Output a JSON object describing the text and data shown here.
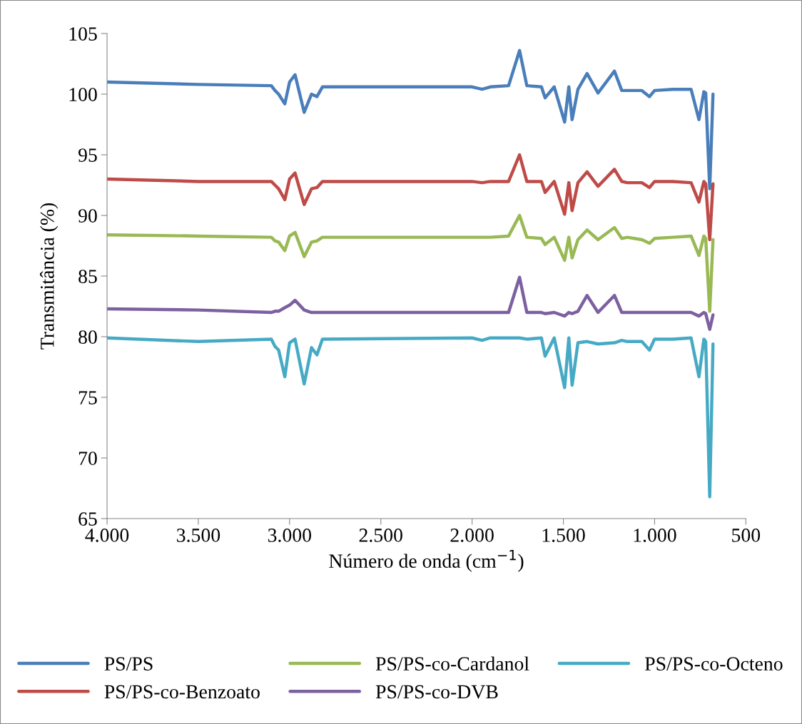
{
  "chart_data": {
    "type": "line",
    "xlabel": "Número de onda (cm$^{−1}$)",
    "ylabel": "Transmitância (%)",
    "x": [
      4000,
      3500,
      3100,
      3080,
      3060,
      3026,
      3000,
      2970,
      2920,
      2880,
      2850,
      2820,
      2000,
      1945,
      1900,
      1800,
      1740,
      1700,
      1620,
      1600,
      1550,
      1493,
      1470,
      1452,
      1420,
      1370,
      1310,
      1220,
      1180,
      1150,
      1070,
      1028,
      1000,
      900,
      800,
      757,
      730,
      720,
      698,
      680
    ],
    "xlim": [
      4000,
      500
    ],
    "xticks": [
      {
        "value": 4000,
        "label": "4.000"
      },
      {
        "value": 3500,
        "label": "3.500"
      },
      {
        "value": 3000,
        "label": "3.000"
      },
      {
        "value": 2500,
        "label": "2.500"
      },
      {
        "value": 2000,
        "label": "2.000"
      },
      {
        "value": 1500,
        "label": "1.500"
      },
      {
        "value": 1000,
        "label": "1.000"
      },
      500
    ],
    "ylim": [
      65,
      105
    ],
    "yticks": [
      65,
      70,
      75,
      80,
      85,
      90,
      95,
      100,
      105
    ],
    "grid": false,
    "legend": "bottom",
    "line_style": "solid",
    "marker": "none",
    "series": [
      {
        "name": "PS/PS",
        "color": "#4a7ebb",
        "values": [
          101.0,
          100.8,
          100.7,
          100.3,
          100.0,
          99.2,
          101.0,
          101.6,
          98.5,
          100.0,
          99.8,
          100.6,
          100.6,
          100.4,
          100.6,
          100.7,
          103.6,
          100.7,
          100.6,
          99.7,
          100.6,
          97.7,
          100.6,
          97.9,
          100.4,
          101.7,
          100.1,
          101.9,
          100.3,
          100.3,
          100.3,
          99.8,
          100.3,
          100.4,
          100.4,
          97.9,
          100.2,
          100.1,
          92.2,
          100.0
        ]
      },
      {
        "name": "PS/PS-co-Benzoato",
        "color": "#be4b48",
        "values": [
          93.0,
          92.8,
          92.8,
          92.5,
          92.2,
          91.3,
          93.0,
          93.5,
          90.9,
          92.2,
          92.3,
          92.8,
          92.8,
          92.7,
          92.8,
          92.8,
          95.0,
          92.8,
          92.8,
          91.9,
          92.8,
          90.1,
          92.7,
          90.4,
          92.7,
          93.6,
          92.4,
          93.8,
          92.8,
          92.7,
          92.7,
          92.3,
          92.8,
          92.8,
          92.7,
          91.1,
          92.8,
          92.6,
          88.0,
          92.6
        ]
      },
      {
        "name": "PS/PS-co-Cardanol",
        "color": "#98b954",
        "values": [
          88.4,
          88.3,
          88.2,
          87.9,
          87.8,
          87.1,
          88.3,
          88.6,
          86.6,
          87.8,
          87.9,
          88.2,
          88.2,
          88.2,
          88.2,
          88.3,
          90.0,
          88.2,
          88.1,
          87.6,
          88.2,
          86.3,
          88.2,
          86.5,
          88.0,
          88.8,
          88.0,
          89.0,
          88.1,
          88.2,
          88.0,
          87.7,
          88.1,
          88.2,
          88.3,
          86.7,
          88.3,
          88.1,
          82.1,
          88.0
        ]
      },
      {
        "name": "PS/PS-co-DVB",
        "color": "#7d60a0",
        "values": [
          82.3,
          82.2,
          82.0,
          82.1,
          82.1,
          82.4,
          82.6,
          83.0,
          82.2,
          82.0,
          82.0,
          82.0,
          82.0,
          82.0,
          82.0,
          82.0,
          84.9,
          82.0,
          82.0,
          81.9,
          82.0,
          81.7,
          82.0,
          81.9,
          82.1,
          83.4,
          82.0,
          83.4,
          82.0,
          82.0,
          82.0,
          82.0,
          82.0,
          82.0,
          82.0,
          81.7,
          82.0,
          81.9,
          80.6,
          81.8
        ]
      },
      {
        "name": "PS/PS-co-Octeno",
        "color": "#46aac5",
        "values": [
          79.9,
          79.6,
          79.8,
          79.2,
          78.9,
          76.7,
          79.5,
          79.8,
          76.1,
          79.1,
          78.5,
          79.8,
          79.9,
          79.7,
          79.9,
          79.9,
          79.9,
          79.8,
          79.9,
          78.4,
          79.9,
          75.8,
          79.9,
          76.0,
          79.5,
          79.6,
          79.4,
          79.5,
          79.7,
          79.6,
          79.6,
          78.9,
          79.8,
          79.8,
          79.9,
          76.7,
          79.8,
          79.6,
          66.8,
          79.4
        ]
      }
    ]
  }
}
